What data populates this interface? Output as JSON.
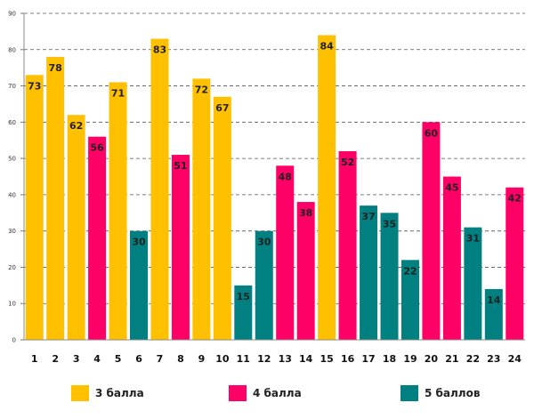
{
  "chart_data": {
    "type": "bar",
    "title": "",
    "xlabel": "",
    "ylabel": "",
    "ylim": [
      0,
      90
    ],
    "yticks": [
      0,
      10,
      20,
      30,
      40,
      50,
      60,
      70,
      80,
      90
    ],
    "grid": true,
    "legend_position": "bottom",
    "categories": [
      "1",
      "2",
      "3",
      "4",
      "5",
      "6",
      "7",
      "8",
      "9",
      "10",
      "11",
      "12",
      "13",
      "14",
      "15",
      "16",
      "17",
      "18",
      "19",
      "20",
      "21",
      "22",
      "23",
      "24"
    ],
    "values": [
      73,
      78,
      62,
      56,
      71,
      30,
      83,
      51,
      72,
      67,
      15,
      30,
      48,
      38,
      84,
      52,
      37,
      35,
      22,
      60,
      45,
      31,
      14,
      42
    ],
    "groups": [
      "g3",
      "g3",
      "g3",
      "g4",
      "g3",
      "g5",
      "g3",
      "g4",
      "g3",
      "g3",
      "g5",
      "g5",
      "g4",
      "g4",
      "g3",
      "g4",
      "g5",
      "g5",
      "g5",
      "g4",
      "g4",
      "g5",
      "g5",
      "g4"
    ],
    "series": [
      {
        "key": "g3",
        "name": "3 балла",
        "color": "#FFC000"
      },
      {
        "key": "g4",
        "name": "4 балла",
        "color": "#FF0066"
      },
      {
        "key": "g5",
        "name": "5 баллов",
        "color": "#008080"
      }
    ]
  }
}
